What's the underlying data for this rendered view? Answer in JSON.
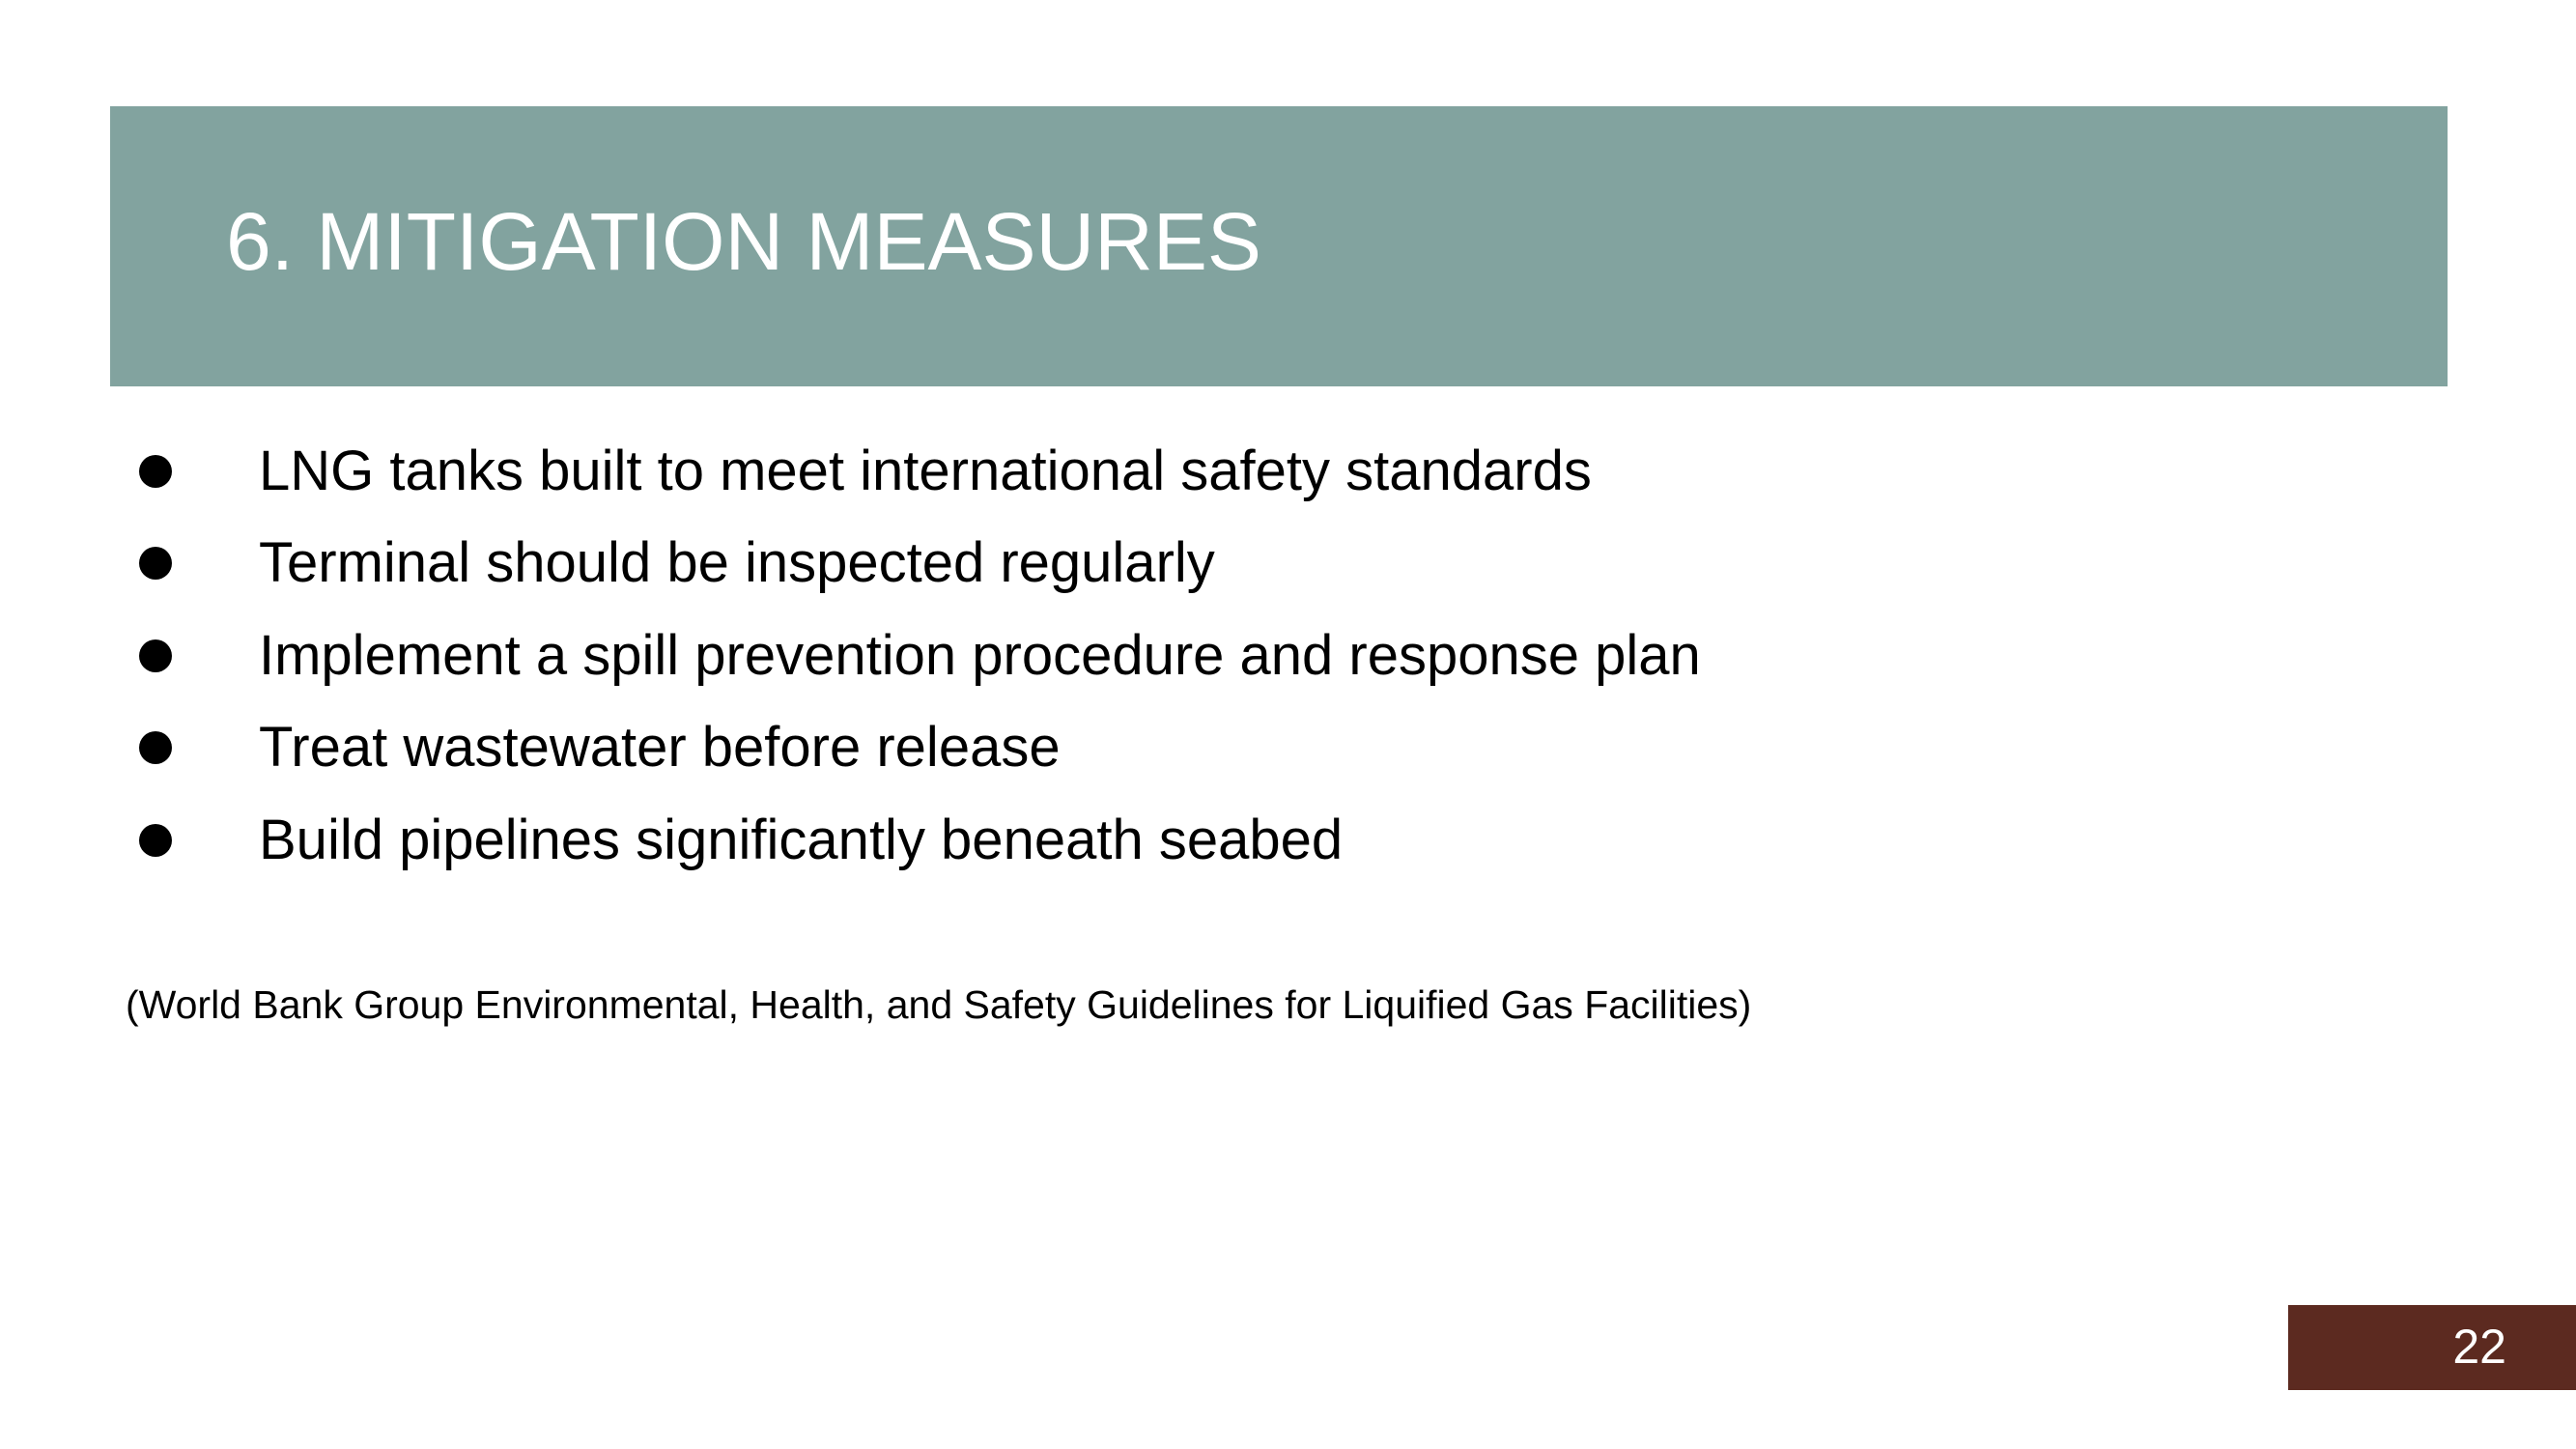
{
  "slide": {
    "title": "6. MITIGATION MEASURES",
    "bullets": [
      "LNG tanks built to meet international safety standards",
      "Terminal should be inspected regularly",
      "Implement a spill prevention procedure and response plan",
      "Treat wastewater before release",
      "Build pipelines significantly beneath seabed"
    ],
    "citation": "(World Bank Group Environmental, Health, and Safety Guidelines for Liquified Gas Facilities)",
    "page_number": "22"
  },
  "colors": {
    "title_band": "#82a39f",
    "title_text": "#ffffff",
    "body_text": "#000000",
    "page_box": "#5c2a20",
    "page_number_text": "#ffffff"
  },
  "icons": {
    "bullet": "bullet-dot-icon"
  }
}
